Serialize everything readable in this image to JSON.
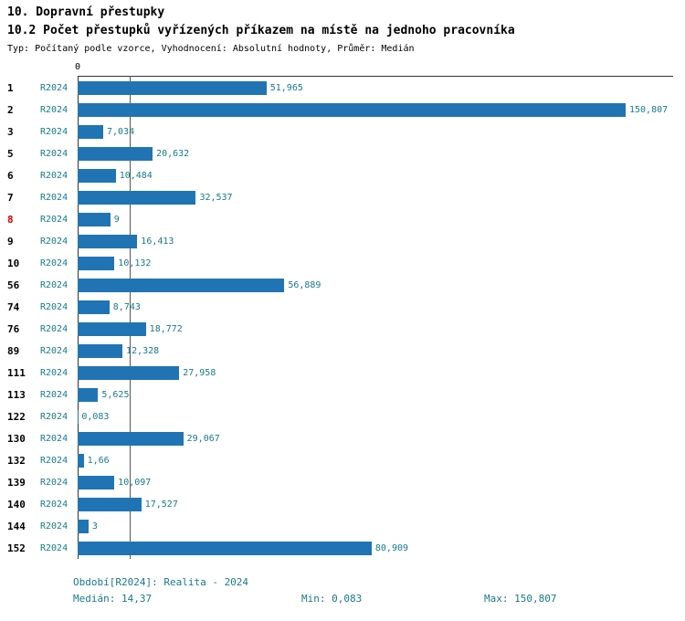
{
  "title": "10. Dopravní přestupky",
  "subtitle": "10.2 Počet přestupků vyřízených příkazem na místě na jednoho pracovníka",
  "meta": "Typ: Počítaný podle vzorce, Vyhodnocení: Absolutní hodnoty, Průměr: Medián",
  "axis": {
    "zero_label": "0"
  },
  "footer": {
    "period": "Období[R2024]: Realita - 2024",
    "median": "Medián: 14,37",
    "min": "Min: 0,083",
    "max": "Max: 150,807"
  },
  "colors": {
    "bar": "#2074b4",
    "label": "#177a8c",
    "row_highlight": "#cc0000",
    "axis": "#333333"
  },
  "chart_data": {
    "type": "bar",
    "orientation": "horizontal",
    "title": "10.2 Počet přestupků vyřízených příkazem na místě na jednoho pracovníka",
    "series_label": "R2024",
    "categories": [
      "1",
      "2",
      "3",
      "5",
      "6",
      "7",
      "8",
      "9",
      "10",
      "56",
      "74",
      "76",
      "89",
      "111",
      "113",
      "122",
      "130",
      "132",
      "139",
      "140",
      "144",
      "152"
    ],
    "values": [
      51.965,
      150.807,
      7.034,
      20.632,
      10.484,
      32.537,
      9,
      16.413,
      10.132,
      56.889,
      8.743,
      18.772,
      12.328,
      27.958,
      5.625,
      0.083,
      29.067,
      1.66,
      10.097,
      17.527,
      3,
      80.909
    ],
    "value_labels": [
      "51,965",
      "150,807",
      "7,034",
      "20,632",
      "10,484",
      "32,537",
      "9",
      "16,413",
      "10,132",
      "56,889",
      "8,743",
      "18,772",
      "12,328",
      "27,958",
      "5,625",
      "0,083",
      "29,067",
      "1,66",
      "10,097",
      "17,527",
      "3",
      "80,909"
    ],
    "highlighted_categories": [
      "8"
    ],
    "xlim": [
      0,
      150.807
    ],
    "median": 14.37,
    "min": 0.083,
    "max": 150.807,
    "legend_position": "none",
    "grid": "median-line-only"
  }
}
